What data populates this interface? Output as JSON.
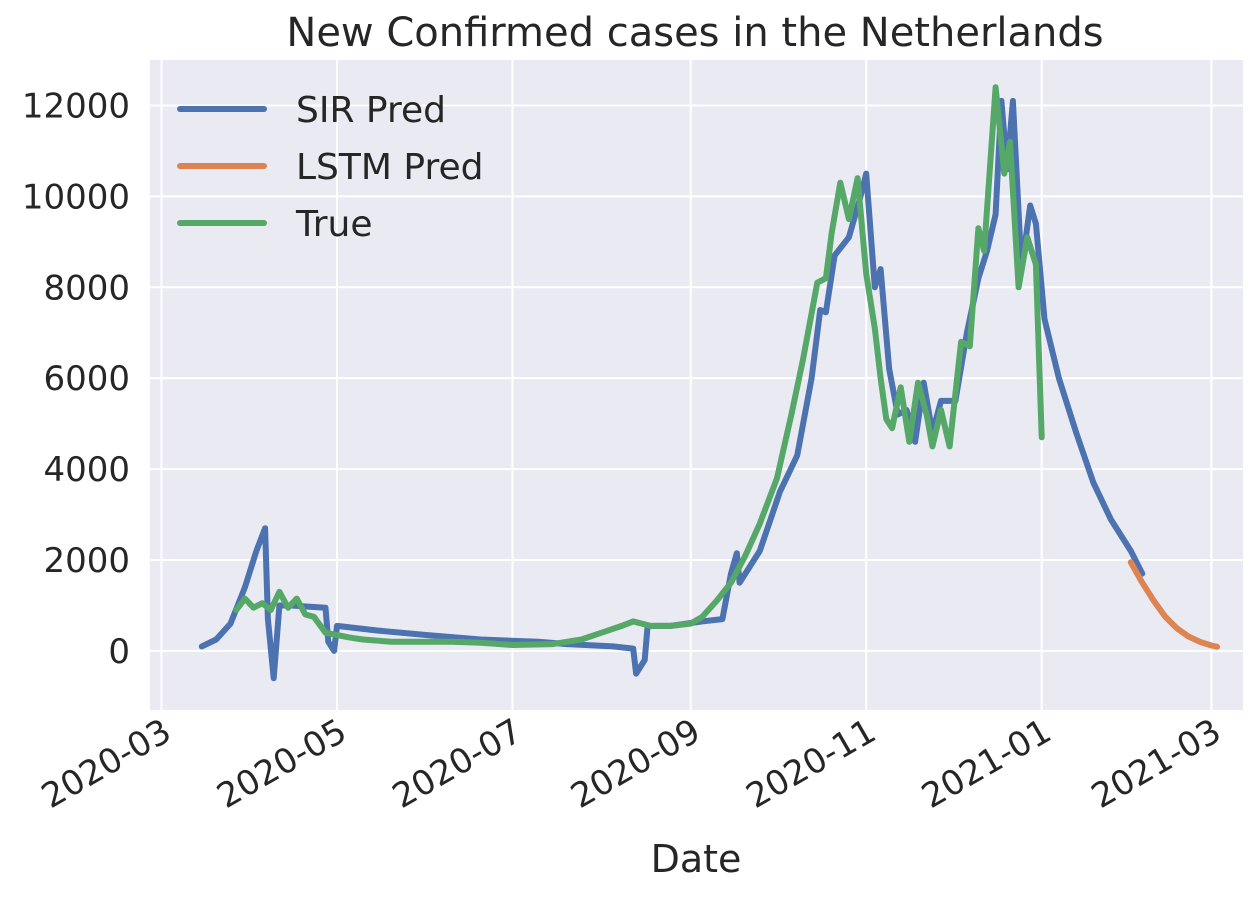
{
  "chart_data": {
    "type": "line",
    "title": "New Confirmed cases in the Netherlands",
    "xlabel": "Date",
    "ylabel": "",
    "x_axis_type": "date",
    "xlim": [
      "2020-02-26",
      "2021-03-12"
    ],
    "ylim": [
      -1300,
      13000
    ],
    "x_ticks": [
      "2020-03",
      "2020-05",
      "2020-07",
      "2020-09",
      "2020-11",
      "2021-01",
      "2021-03"
    ],
    "y_ticks": [
      0,
      2000,
      4000,
      6000,
      8000,
      10000,
      12000
    ],
    "grid": true,
    "background": "#eaeaf2",
    "legend_position": "upper-left",
    "series": [
      {
        "name": "SIR Pred",
        "color": "#4c72b0",
        "points": [
          [
            "2020-03-15",
            100
          ],
          [
            "2020-03-20",
            250
          ],
          [
            "2020-03-25",
            600
          ],
          [
            "2020-03-30",
            1400
          ],
          [
            "2020-04-03",
            2200
          ],
          [
            "2020-04-06",
            2700
          ],
          [
            "2020-04-07",
            700
          ],
          [
            "2020-04-09",
            -600
          ],
          [
            "2020-04-11",
            1000
          ],
          [
            "2020-04-15",
            1000
          ],
          [
            "2020-04-27",
            950
          ],
          [
            "2020-04-28",
            200
          ],
          [
            "2020-04-30",
            0
          ],
          [
            "2020-05-01",
            550
          ],
          [
            "2020-05-15",
            450
          ],
          [
            "2020-06-01",
            350
          ],
          [
            "2020-06-20",
            250
          ],
          [
            "2020-07-10",
            200
          ],
          [
            "2020-07-20",
            150
          ],
          [
            "2020-08-05",
            100
          ],
          [
            "2020-08-12",
            50
          ],
          [
            "2020-08-13",
            -500
          ],
          [
            "2020-08-16",
            -200
          ],
          [
            "2020-08-17",
            550
          ],
          [
            "2020-08-25",
            550
          ],
          [
            "2020-09-05",
            650
          ],
          [
            "2020-09-12",
            700
          ],
          [
            "2020-09-15",
            1700
          ],
          [
            "2020-09-17",
            2150
          ],
          [
            "2020-09-18",
            1500
          ],
          [
            "2020-09-25",
            2200
          ],
          [
            "2020-10-02",
            3500
          ],
          [
            "2020-10-08",
            4300
          ],
          [
            "2020-10-13",
            6000
          ],
          [
            "2020-10-16",
            7500
          ],
          [
            "2020-10-18",
            7450
          ],
          [
            "2020-10-21",
            8700
          ],
          [
            "2020-10-26",
            9100
          ],
          [
            "2020-10-30",
            10000
          ],
          [
            "2020-11-01",
            10500
          ],
          [
            "2020-11-04",
            8000
          ],
          [
            "2020-11-06",
            8400
          ],
          [
            "2020-11-09",
            6200
          ],
          [
            "2020-11-12",
            5200
          ],
          [
            "2020-11-15",
            5300
          ],
          [
            "2020-11-18",
            4600
          ],
          [
            "2020-11-21",
            5900
          ],
          [
            "2020-11-24",
            4800
          ],
          [
            "2020-11-27",
            5500
          ],
          [
            "2020-12-02",
            5500
          ],
          [
            "2020-12-06",
            7000
          ],
          [
            "2020-12-10",
            8200
          ],
          [
            "2020-12-13",
            8800
          ],
          [
            "2020-12-16",
            9600
          ],
          [
            "2020-12-18",
            12100
          ],
          [
            "2020-12-20",
            10600
          ],
          [
            "2020-12-22",
            12100
          ],
          [
            "2020-12-25",
            8400
          ],
          [
            "2020-12-28",
            9800
          ],
          [
            "2020-12-30",
            9400
          ],
          [
            "2021-01-02",
            7300
          ],
          [
            "2021-01-07",
            6000
          ],
          [
            "2021-01-13",
            4800
          ],
          [
            "2021-01-19",
            3700
          ],
          [
            "2021-01-25",
            2900
          ],
          [
            "2021-02-01",
            2200
          ],
          [
            "2021-02-05",
            1700
          ]
        ]
      },
      {
        "name": "LSTM Pred",
        "color": "#dd8452",
        "points": [
          [
            "2021-02-01",
            1950
          ],
          [
            "2021-02-05",
            1500
          ],
          [
            "2021-02-09",
            1100
          ],
          [
            "2021-02-13",
            750
          ],
          [
            "2021-02-17",
            500
          ],
          [
            "2021-02-21",
            320
          ],
          [
            "2021-02-25",
            200
          ],
          [
            "2021-03-01",
            120
          ],
          [
            "2021-03-03",
            90
          ]
        ]
      },
      {
        "name": "True",
        "color": "#55a868",
        "points": [
          [
            "2020-03-27",
            900
          ],
          [
            "2020-03-30",
            1150
          ],
          [
            "2020-04-02",
            950
          ],
          [
            "2020-04-05",
            1050
          ],
          [
            "2020-04-08",
            900
          ],
          [
            "2020-04-11",
            1300
          ],
          [
            "2020-04-14",
            950
          ],
          [
            "2020-04-17",
            1150
          ],
          [
            "2020-04-20",
            800
          ],
          [
            "2020-04-23",
            750
          ],
          [
            "2020-04-27",
            400
          ],
          [
            "2020-05-01",
            350
          ],
          [
            "2020-05-05",
            300
          ],
          [
            "2020-05-10",
            250
          ],
          [
            "2020-05-20",
            200
          ],
          [
            "2020-06-01",
            200
          ],
          [
            "2020-06-10",
            200
          ],
          [
            "2020-06-20",
            180
          ],
          [
            "2020-07-01",
            130
          ],
          [
            "2020-07-15",
            150
          ],
          [
            "2020-07-25",
            250
          ],
          [
            "2020-08-01",
            400
          ],
          [
            "2020-08-08",
            550
          ],
          [
            "2020-08-12",
            650
          ],
          [
            "2020-08-18",
            550
          ],
          [
            "2020-08-25",
            550
          ],
          [
            "2020-09-01",
            600
          ],
          [
            "2020-09-05",
            750
          ],
          [
            "2020-09-10",
            1100
          ],
          [
            "2020-09-15",
            1500
          ],
          [
            "2020-09-20",
            2100
          ],
          [
            "2020-09-25",
            2800
          ],
          [
            "2020-10-01",
            3800
          ],
          [
            "2020-10-06",
            5200
          ],
          [
            "2020-10-10",
            6400
          ],
          [
            "2020-10-15",
            8100
          ],
          [
            "2020-10-18",
            8200
          ],
          [
            "2020-10-20",
            9200
          ],
          [
            "2020-10-23",
            10300
          ],
          [
            "2020-10-26",
            9500
          ],
          [
            "2020-10-29",
            10400
          ],
          [
            "2020-11-01",
            8300
          ],
          [
            "2020-11-04",
            7100
          ],
          [
            "2020-11-06",
            6000
          ],
          [
            "2020-11-08",
            5100
          ],
          [
            "2020-11-10",
            4900
          ],
          [
            "2020-11-13",
            5800
          ],
          [
            "2020-11-16",
            4600
          ],
          [
            "2020-11-19",
            5900
          ],
          [
            "2020-11-22",
            5200
          ],
          [
            "2020-11-24",
            4500
          ],
          [
            "2020-11-27",
            5300
          ],
          [
            "2020-11-30",
            4500
          ],
          [
            "2020-12-04",
            6800
          ],
          [
            "2020-12-07",
            6700
          ],
          [
            "2020-12-10",
            9300
          ],
          [
            "2020-12-12",
            8800
          ],
          [
            "2020-12-16",
            12400
          ],
          [
            "2020-12-19",
            10500
          ],
          [
            "2020-12-21",
            11200
          ],
          [
            "2020-12-24",
            8000
          ],
          [
            "2020-12-27",
            9100
          ],
          [
            "2020-12-30",
            8500
          ],
          [
            "2021-01-01",
            4700
          ]
        ]
      }
    ]
  }
}
